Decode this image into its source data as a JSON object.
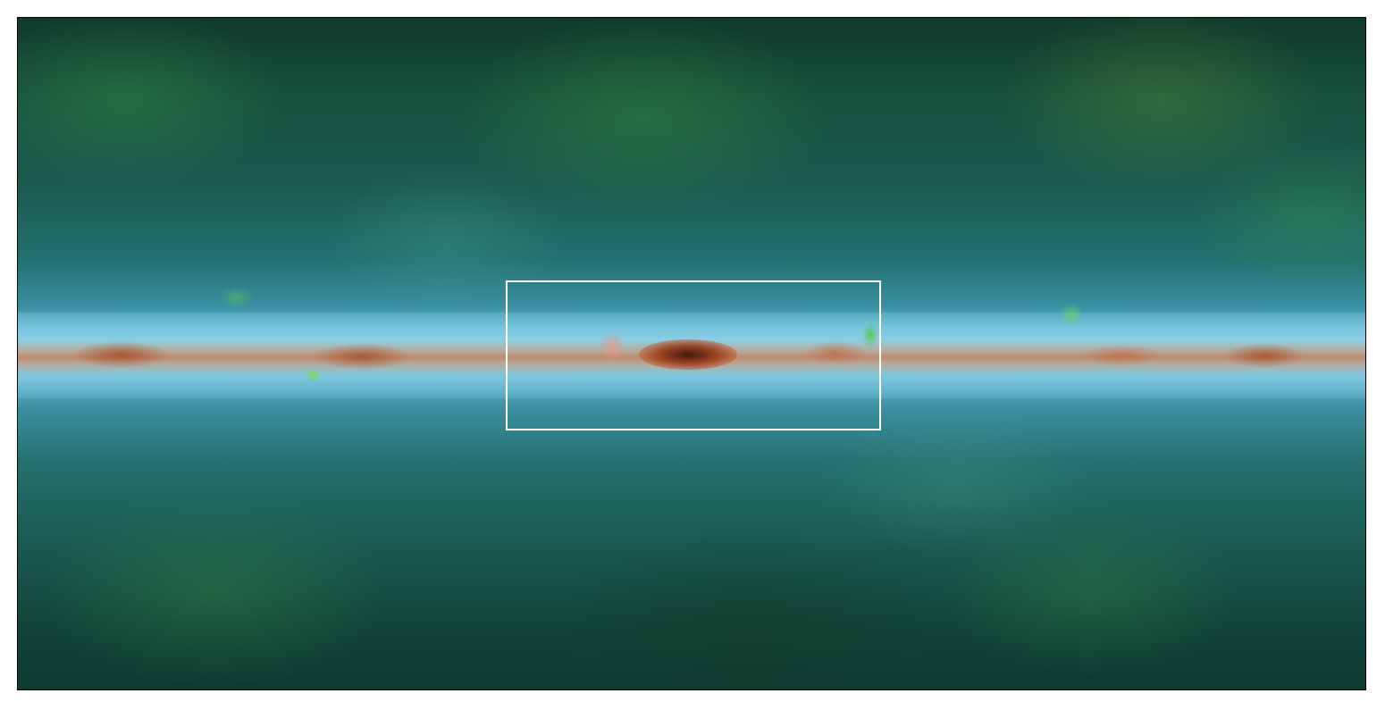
{
  "figure": {
    "panel": "sky-image",
    "overlay": "highlight-box"
  },
  "colors": {
    "frame_border": "#000000",
    "highlight_box": "#ffffff",
    "background": "#ffffff"
  }
}
